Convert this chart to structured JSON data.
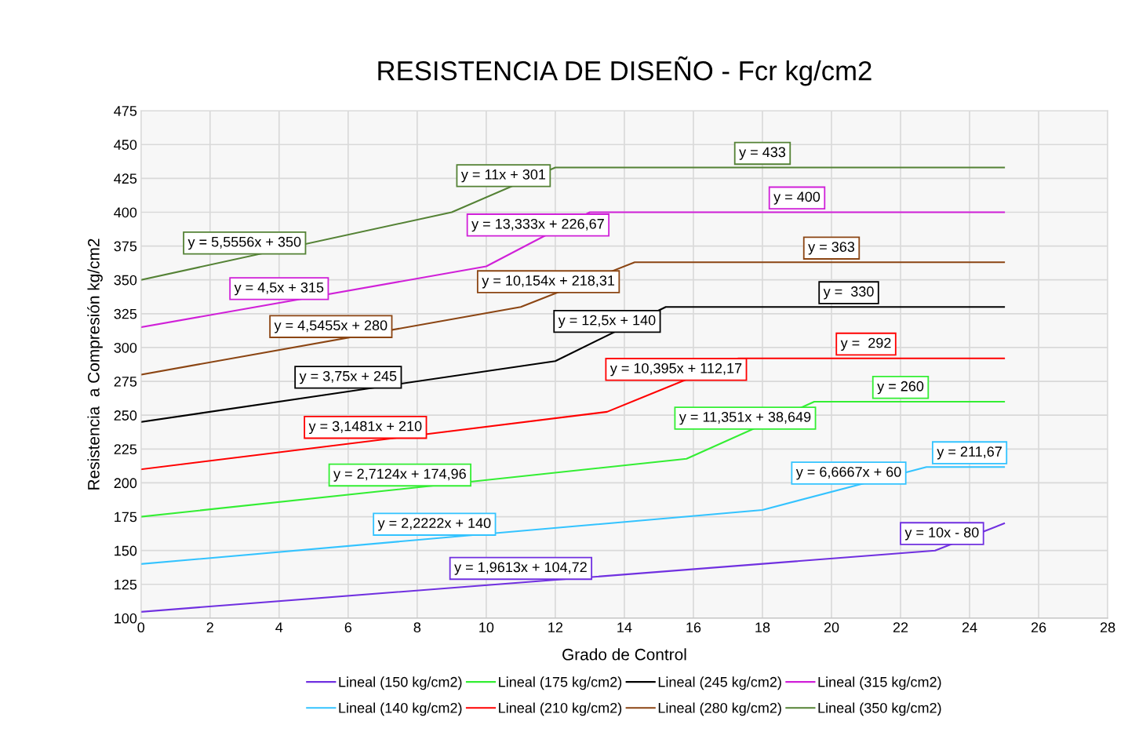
{
  "chart_data": {
    "type": "line",
    "title": "RESISTENCIA DE DISEÑO - Fcr kg/cm2",
    "xlabel": "Grado de Control",
    "ylabel": "Resistencia  a Compresión kg/cm2",
    "xlim": [
      0,
      28
    ],
    "xticks": [
      0,
      2,
      4,
      6,
      8,
      10,
      12,
      14,
      16,
      18,
      20,
      22,
      24,
      26,
      28
    ],
    "ylim": [
      100,
      475
    ],
    "yticks": [
      100,
      125,
      150,
      175,
      200,
      225,
      250,
      275,
      300,
      325,
      350,
      375,
      400,
      425,
      450,
      475
    ],
    "grid": true,
    "legend": "bottom",
    "marker": "none",
    "line_style": "solid",
    "series": [
      {
        "name": "Lineal (150 kg/cm2)",
        "color": "#7030e0",
        "x": [
          0,
          23,
          25
        ],
        "values": [
          104.7,
          150,
          170
        ]
      },
      {
        "name": "Lineal (140 kg/cm2)",
        "color": "#33c3ff",
        "x": [
          0,
          18,
          22.75,
          25
        ],
        "values": [
          140,
          180,
          211.7,
          211.7
        ]
      },
      {
        "name": "Lineal (175 kg/cm2)",
        "color": "#33ee33",
        "x": [
          0,
          15.8,
          19.5,
          25
        ],
        "values": [
          175,
          217.8,
          260,
          260
        ]
      },
      {
        "name": "Lineal (210 kg/cm2)",
        "color": "#ff0000",
        "x": [
          0,
          13.5,
          17.3,
          25
        ],
        "values": [
          210,
          252.5,
          292,
          292
        ]
      },
      {
        "name": "Lineal (245 kg/cm2)",
        "color": "#000000",
        "x": [
          0,
          12,
          15.2,
          25
        ],
        "values": [
          245,
          290,
          330,
          330
        ]
      },
      {
        "name": "Lineal (280 kg/cm2)",
        "color": "#8b4513",
        "x": [
          0,
          11,
          14.3,
          25
        ],
        "values": [
          280,
          330,
          363,
          363
        ]
      },
      {
        "name": "Lineal (315 kg/cm2)",
        "color": "#d020d8",
        "x": [
          0,
          10,
          13,
          25
        ],
        "values": [
          315,
          360,
          400,
          400
        ]
      },
      {
        "name": "Lineal (350 kg/cm2)",
        "color": "#548235",
        "x": [
          0,
          9,
          12,
          25
        ],
        "values": [
          350,
          400,
          433,
          433
        ]
      }
    ],
    "annotations": [
      {
        "text": "y = 5,5556x + 350",
        "x": 3,
        "y": 366.7
      },
      {
        "text": "y = 11x + 301",
        "x": 10.5,
        "y": 416.5
      },
      {
        "text": "y = 433",
        "x": 18,
        "y": 433
      },
      {
        "text": "y = 4,5x + 315",
        "x": 4,
        "y": 333
      },
      {
        "text": "y = 13,333x + 226,67",
        "x": 11.5,
        "y": 380
      },
      {
        "text": "y = 400",
        "x": 19,
        "y": 400
      },
      {
        "text": "y = 4,5455x + 280",
        "x": 5.5,
        "y": 305
      },
      {
        "text": "y = 10,154x + 218,31",
        "x": 11.8,
        "y": 338.1
      },
      {
        "text": "y = 363",
        "x": 20,
        "y": 363
      },
      {
        "text": "y = 3,75x + 245",
        "x": 6,
        "y": 267.5
      },
      {
        "text": "y = 12,5x + 140",
        "x": 13.5,
        "y": 308.8
      },
      {
        "text": "y =  330",
        "x": 20.5,
        "y": 330
      },
      {
        "text": "y = 10,395x + 112,17",
        "x": 15.5,
        "y": 273.3
      },
      {
        "text": "y =  292",
        "x": 21,
        "y": 292
      },
      {
        "text": "y = 3,1481x + 210",
        "x": 6.5,
        "y": 230.5
      },
      {
        "text": "y = 260",
        "x": 22,
        "y": 260
      },
      {
        "text": "y = 11,351x + 38,649",
        "x": 17.5,
        "y": 237.3
      },
      {
        "text": "y = 2,7124x + 174,96",
        "x": 7.5,
        "y": 195.3
      },
      {
        "text": "y = 211,67",
        "x": 24,
        "y": 211.7
      },
      {
        "text": "y = 6,6667x + 60",
        "x": 20.5,
        "y": 196.7
      },
      {
        "text": "y = 2,2222x + 140",
        "x": 8.5,
        "y": 158.9
      },
      {
        "text": "y = 1,9613x + 104,72",
        "x": 11,
        "y": 126.3
      },
      {
        "text": "y = 10x - 80",
        "x": 23.2,
        "y": 152
      }
    ]
  }
}
